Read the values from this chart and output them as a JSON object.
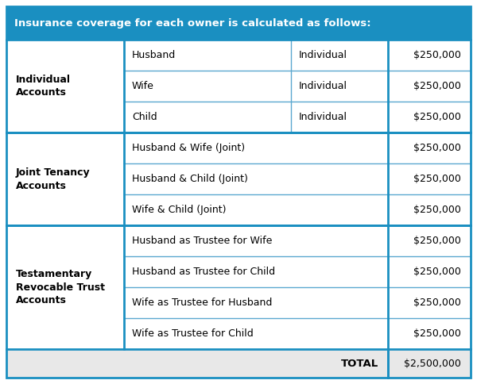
{
  "title": "Insurance coverage for each owner is calculated as follows:",
  "title_bg": "#1a8fc1",
  "title_text_color": "#ffffff",
  "border_color": "#1a8fc1",
  "grid_color": "#5ba8d0",
  "total_row_bg": "#e8e8e8",
  "sections": [
    {
      "label": "Individual\nAccounts",
      "rows": [
        {
          "col1": "Husband",
          "col2": "Individual",
          "amount": "$250,000"
        },
        {
          "col1": "Wife",
          "col2": "Individual",
          "amount": "$250,000"
        },
        {
          "col1": "Child",
          "col2": "Individual",
          "amount": "$250,000"
        }
      ]
    },
    {
      "label": "Joint Tenancy\nAccounts",
      "rows": [
        {
          "col1": "Husband & Wife (Joint)",
          "col2": null,
          "amount": "$250,000"
        },
        {
          "col1": "Husband & Child (Joint)",
          "col2": null,
          "amount": "$250,000"
        },
        {
          "col1": "Wife & Child (Joint)",
          "col2": null,
          "amount": "$250,000"
        }
      ]
    },
    {
      "label": "Testamentary\nRevocable Trust\nAccounts",
      "rows": [
        {
          "col1": "Husband as Trustee for Wife",
          "col2": null,
          "amount": "$250,000"
        },
        {
          "col1": "Husband as Trustee for Child",
          "col2": null,
          "amount": "$250,000"
        },
        {
          "col1": "Wife as Trustee for Husband",
          "col2": null,
          "amount": "$250,000"
        },
        {
          "col1": "Wife as Trustee for Child",
          "col2": null,
          "amount": "$250,000"
        }
      ]
    }
  ],
  "total_label": "TOTAL",
  "total_amount": "$2,500,000",
  "figsize": [
    6.0,
    4.84
  ],
  "dpi": 100
}
